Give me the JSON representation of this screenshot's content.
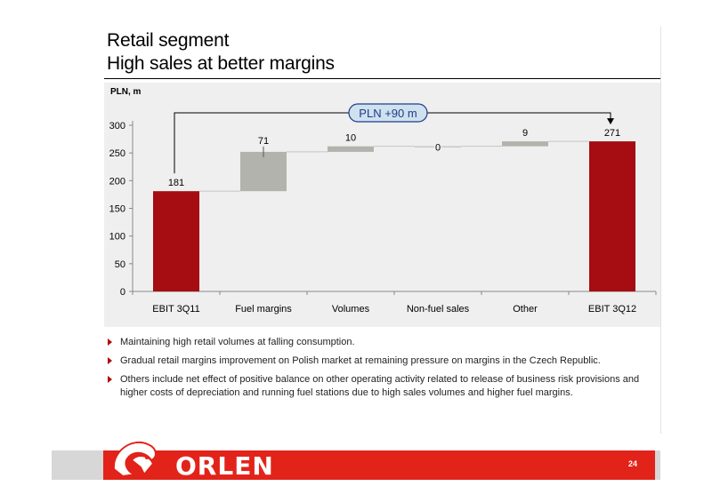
{
  "slide": {
    "title_line1": "Retail segment",
    "title_line2": "High sales at better margins",
    "unit_label": "PLN, m",
    "page_number": "24"
  },
  "chart_data": {
    "type": "bar",
    "subtype": "waterfall",
    "categories": [
      "EBIT 3Q11",
      "Fuel margins",
      "Volumes",
      "Non-fuel sales",
      "Other",
      "EBIT 3Q12"
    ],
    "bars": [
      {
        "category": "EBIT 3Q11",
        "kind": "total",
        "start": 0,
        "end": 181,
        "label": "181"
      },
      {
        "category": "Fuel margins",
        "kind": "delta",
        "start": 181,
        "end": 252,
        "label": "71"
      },
      {
        "category": "Volumes",
        "kind": "delta",
        "start": 252,
        "end": 262,
        "label": "10"
      },
      {
        "category": "Non-fuel sales",
        "kind": "delta",
        "start": 262,
        "end": 262,
        "label": "0"
      },
      {
        "category": "Other",
        "kind": "delta",
        "start": 262,
        "end": 271,
        "label": "9"
      },
      {
        "category": "EBIT 3Q12",
        "kind": "total",
        "start": 0,
        "end": 271,
        "label": "271"
      }
    ],
    "ylabel": "PLN, m",
    "ylim": [
      0,
      300
    ],
    "yticks": [
      0,
      50,
      100,
      150,
      200,
      250,
      300
    ],
    "annotation": "PLN +90 m",
    "grid": false,
    "colors": {
      "total": "#a50d12",
      "delta": "#b3b3ad",
      "connector": "#c4c4c4"
    }
  },
  "bullets": [
    "Maintaining high retail volumes at falling consumption.",
    "Gradual retail margins improvement on Polish market at remaining pressure on margins in the Czech Republic.",
    "Others include net effect of positive balance on other operating activity related to release of business risk provisions and higher costs of depreciation and running fuel stations due to high sales volumes and higher fuel margins."
  ],
  "footer": {
    "logo_text": "ORLEN",
    "colors": {
      "band": "#e2231a",
      "grey": "#d7d7d7"
    }
  }
}
